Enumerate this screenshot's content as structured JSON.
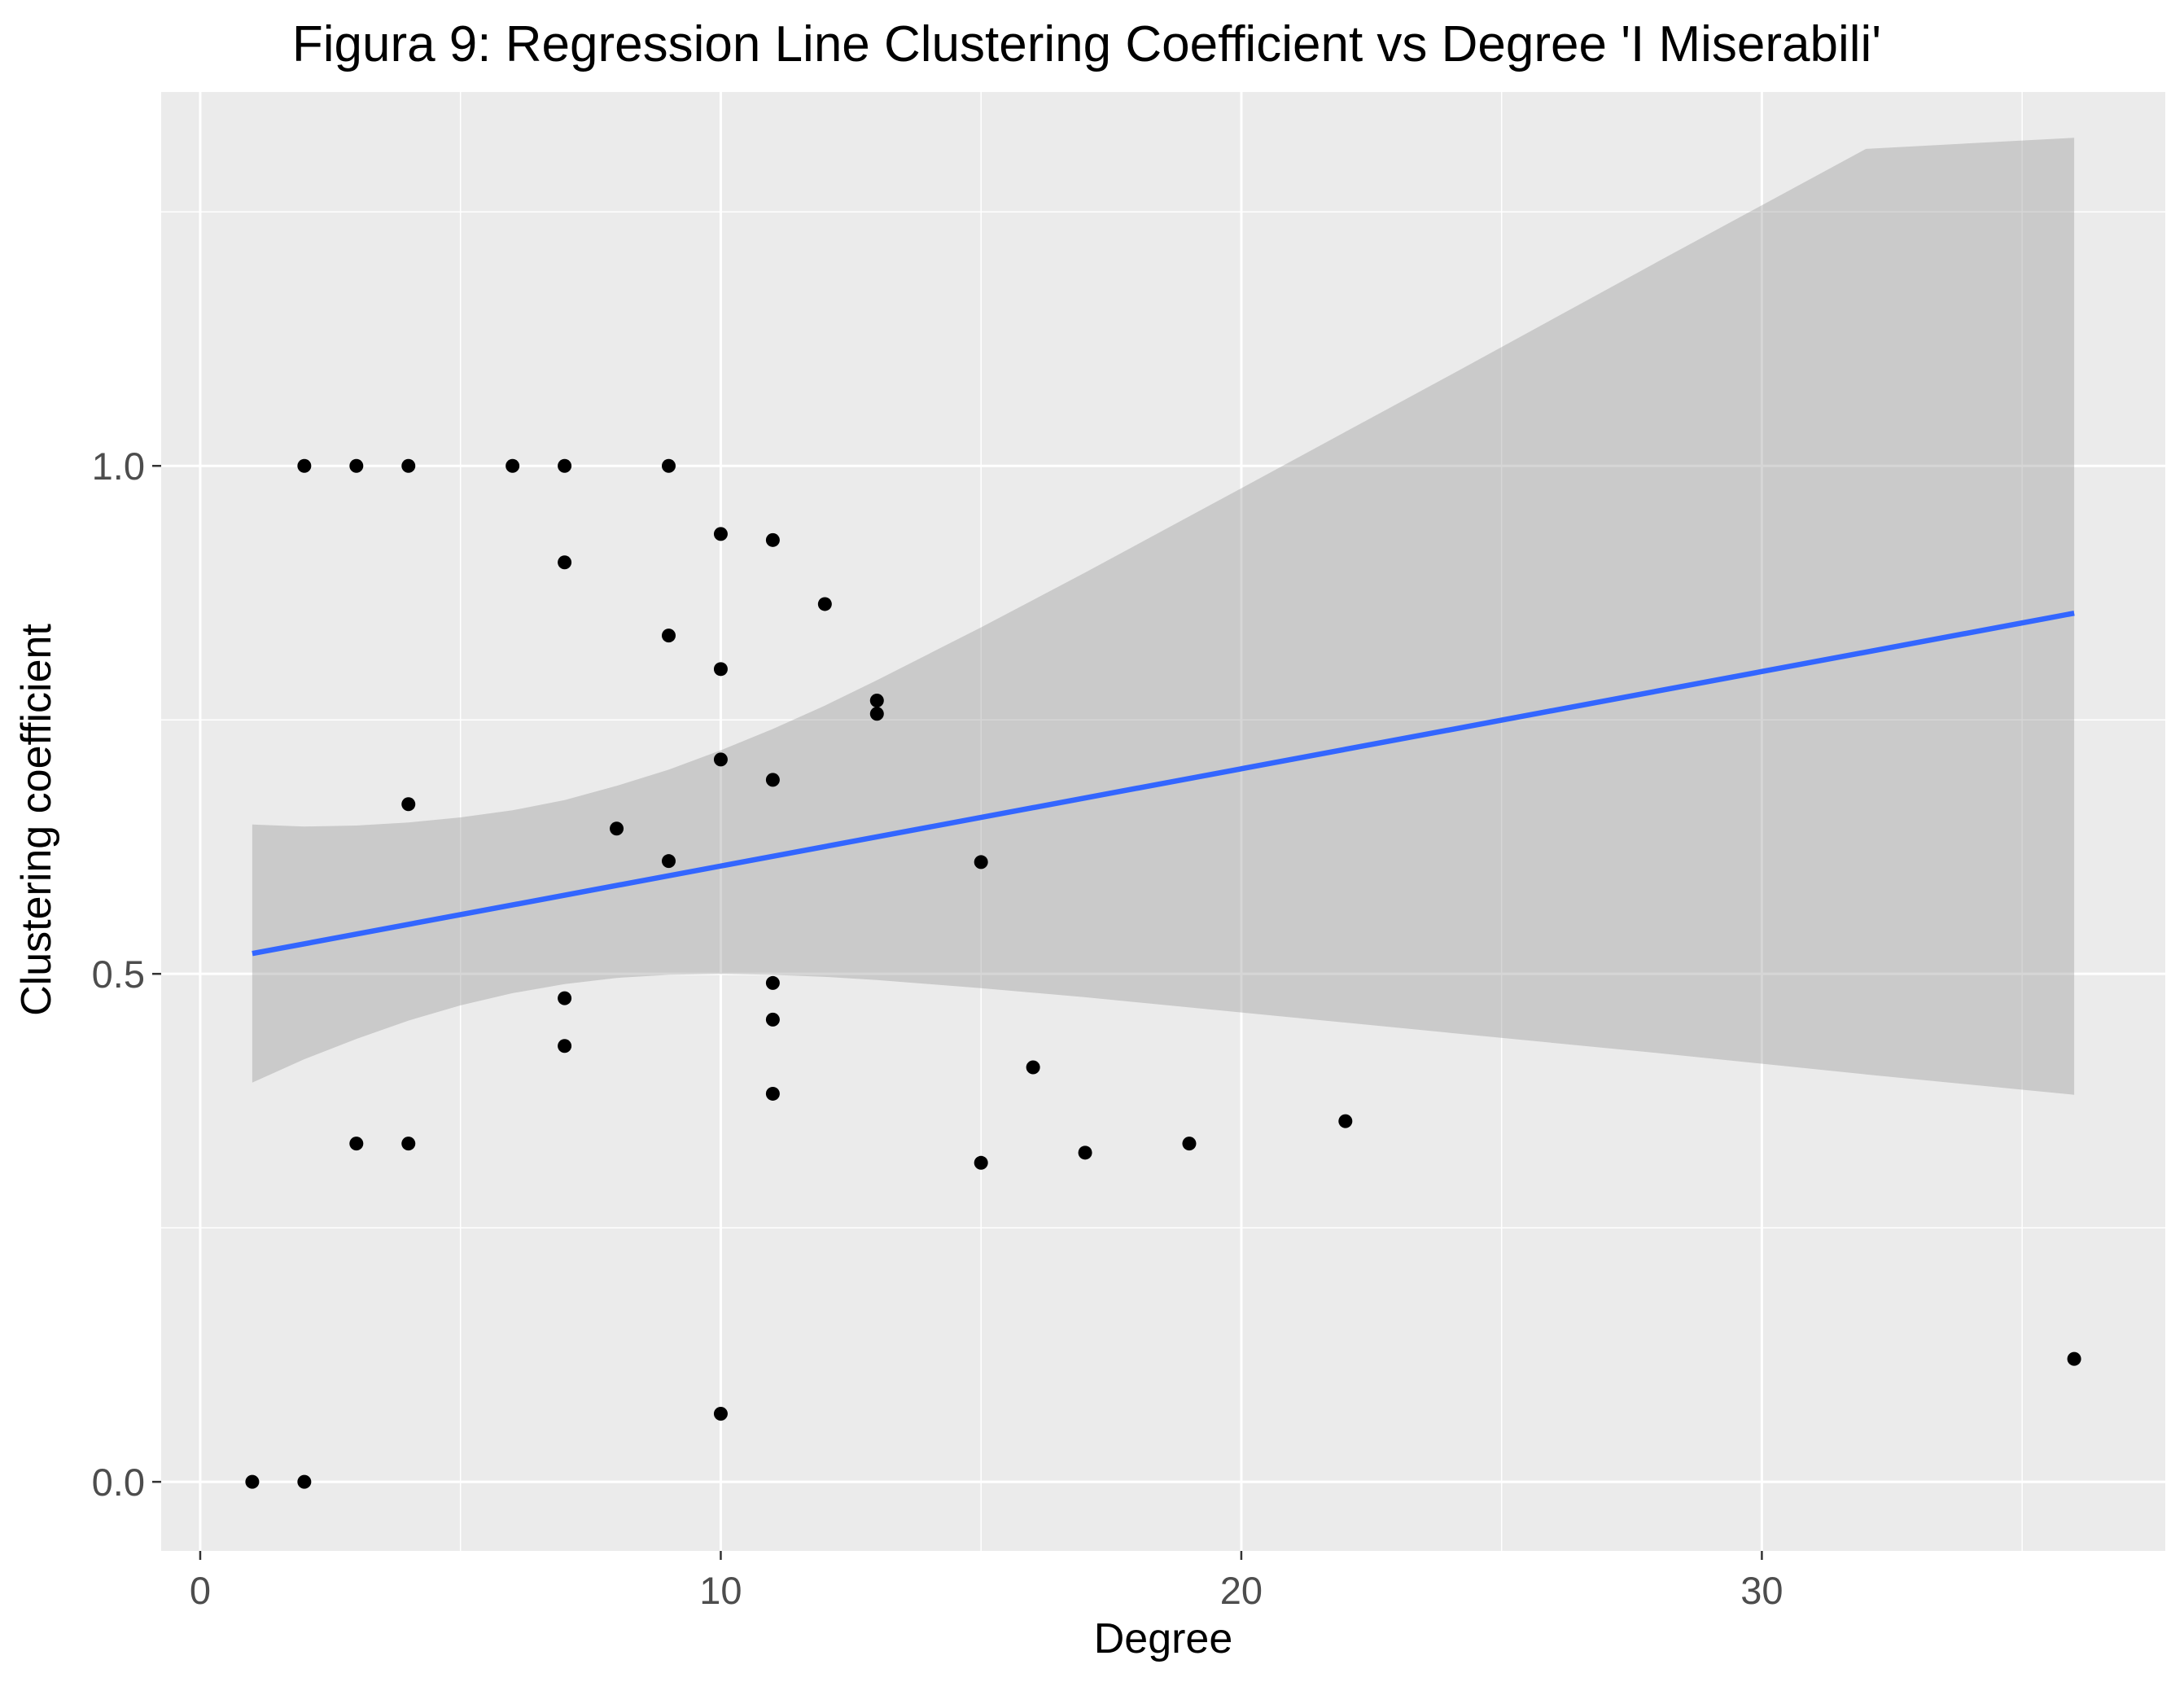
{
  "chart_data": {
    "type": "scatter",
    "title": "Figura 9: Regression Line Clustering Coefficient vs Degree 'I Miserabili'",
    "xlabel": "Degree",
    "ylabel": "Clustering coefficient",
    "xlim": [
      -0.75,
      37.75
    ],
    "ylim": [
      -0.068,
      1.368
    ],
    "x_major_ticks": [
      0,
      10,
      20,
      30
    ],
    "x_tick_labels": [
      "0",
      "10",
      "20",
      "30"
    ],
    "x_minor_ticks": [
      5,
      15,
      25,
      35
    ],
    "y_major_ticks": [
      0.0,
      0.5,
      1.0
    ],
    "y_tick_labels": [
      "0.0",
      "0.5",
      "1.0"
    ],
    "y_minor_ticks": [
      0.25,
      0.75,
      1.25
    ],
    "grid": true,
    "colors": {
      "panel_background": "#ebebeb",
      "grid": "#ffffff",
      "points": "#000000",
      "regression_line": "#3366ff",
      "confidence_band": "#999999"
    },
    "points": [
      {
        "x": 1,
        "y": 0.0
      },
      {
        "x": 2,
        "y": 0.0
      },
      {
        "x": 2,
        "y": 1.0
      },
      {
        "x": 3,
        "y": 1.0
      },
      {
        "x": 4,
        "y": 1.0
      },
      {
        "x": 6,
        "y": 1.0
      },
      {
        "x": 7,
        "y": 1.0
      },
      {
        "x": 9,
        "y": 1.0
      },
      {
        "x": 10,
        "y": 0.933
      },
      {
        "x": 11,
        "y": 0.927
      },
      {
        "x": 7,
        "y": 0.905
      },
      {
        "x": 12,
        "y": 0.864
      },
      {
        "x": 9,
        "y": 0.833
      },
      {
        "x": 10,
        "y": 0.8
      },
      {
        "x": 13,
        "y": 0.769
      },
      {
        "x": 13,
        "y": 0.756
      },
      {
        "x": 10,
        "y": 0.711
      },
      {
        "x": 11,
        "y": 0.691
      },
      {
        "x": 4,
        "y": 0.667
      },
      {
        "x": 8,
        "y": 0.643
      },
      {
        "x": 9,
        "y": 0.611
      },
      {
        "x": 15,
        "y": 0.61
      },
      {
        "x": 11,
        "y": 0.491
      },
      {
        "x": 7,
        "y": 0.476
      },
      {
        "x": 11,
        "y": 0.455
      },
      {
        "x": 7,
        "y": 0.429
      },
      {
        "x": 16,
        "y": 0.408
      },
      {
        "x": 11,
        "y": 0.382
      },
      {
        "x": 22,
        "y": 0.355
      },
      {
        "x": 3,
        "y": 0.333
      },
      {
        "x": 4,
        "y": 0.333
      },
      {
        "x": 19,
        "y": 0.333
      },
      {
        "x": 17,
        "y": 0.324
      },
      {
        "x": 15,
        "y": 0.314
      },
      {
        "x": 10,
        "y": 0.067
      },
      {
        "x": 36,
        "y": 0.121
      }
    ],
    "regression_line": {
      "x": [
        1,
        36
      ],
      "y": [
        0.52,
        0.855
      ]
    },
    "confidence_band": [
      {
        "x": 1,
        "lower": 0.393,
        "upper": 0.647
      },
      {
        "x": 2,
        "lower": 0.416,
        "upper": 0.645
      },
      {
        "x": 3,
        "lower": 0.436,
        "upper": 0.646
      },
      {
        "x": 4,
        "lower": 0.454,
        "upper": 0.649
      },
      {
        "x": 5,
        "lower": 0.469,
        "upper": 0.654
      },
      {
        "x": 6,
        "lower": 0.481,
        "upper": 0.661
      },
      {
        "x": 7,
        "lower": 0.49,
        "upper": 0.671
      },
      {
        "x": 8,
        "lower": 0.496,
        "upper": 0.685
      },
      {
        "x": 9,
        "lower": 0.499,
        "upper": 0.701
      },
      {
        "x": 10,
        "lower": 0.5,
        "upper": 0.72
      },
      {
        "x": 11,
        "lower": 0.499,
        "upper": 0.741
      },
      {
        "x": 12,
        "lower": 0.497,
        "upper": 0.764
      },
      {
        "x": 13,
        "lower": 0.494,
        "upper": 0.789
      },
      {
        "x": 14,
        "lower": 0.49,
        "upper": 0.815
      },
      {
        "x": 15,
        "lower": 0.486,
        "upper": 0.841
      },
      {
        "x": 17,
        "lower": 0.477,
        "upper": 0.895
      },
      {
        "x": 20,
        "lower": 0.462,
        "upper": 0.978
      },
      {
        "x": 24,
        "lower": 0.442,
        "upper": 1.089
      },
      {
        "x": 28,
        "lower": 0.422,
        "upper": 1.201
      },
      {
        "x": 32,
        "lower": 0.401,
        "upper": 1.312
      },
      {
        "x": 36,
        "lower": 0.381,
        "upper": 1.323
      }
    ]
  }
}
